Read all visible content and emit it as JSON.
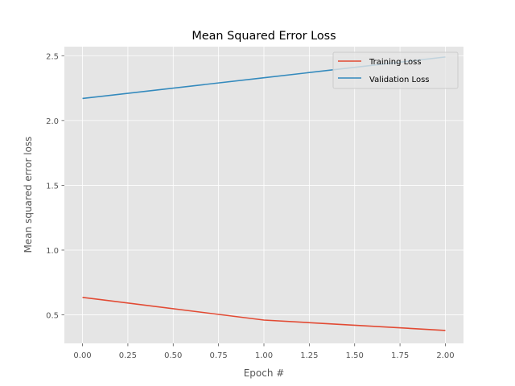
{
  "chart_data": {
    "type": "line",
    "title": "Mean Squared Error Loss",
    "xlabel": "Epoch #",
    "ylabel": "Mean squared error loss",
    "x": [
      0,
      1,
      2
    ],
    "series": [
      {
        "name": "Training Loss",
        "values": [
          0.635,
          0.46,
          0.38
        ],
        "color": "#E24A33"
      },
      {
        "name": "Validation Loss",
        "values": [
          2.17,
          2.33,
          2.49
        ],
        "color": "#348ABD"
      }
    ],
    "xlim": [
      -0.1,
      2.1
    ],
    "ylim": [
      0.28,
      2.57
    ],
    "xticks": [
      0,
      0.25,
      0.5,
      0.75,
      1,
      1.25,
      1.5,
      1.75,
      2
    ],
    "xtick_labels": [
      "0.00",
      "0.25",
      "0.50",
      "0.75",
      "1.00",
      "1.25",
      "1.50",
      "1.75",
      "2.00"
    ],
    "yticks": [
      0.5,
      1.0,
      1.5,
      2.0,
      2.5
    ],
    "ytick_labels": [
      "0.5",
      "1.0",
      "1.5",
      "2.0",
      "2.5"
    ],
    "grid": true,
    "legend_position": "upper right",
    "plot_background": "#E5E5E5",
    "grid_color": "#FFFFFF"
  }
}
